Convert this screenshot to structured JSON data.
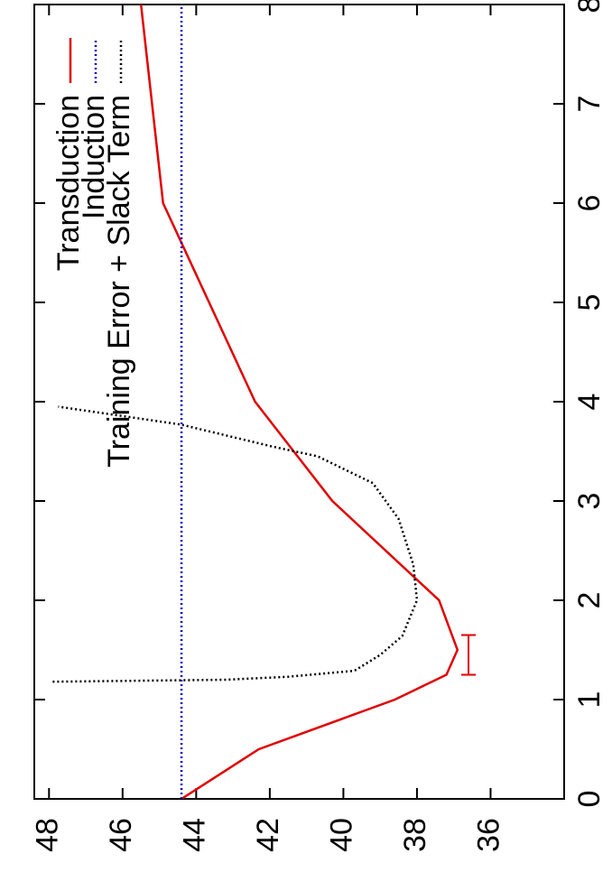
{
  "chart_data": {
    "type": "line",
    "rotated": true,
    "legend": "top right",
    "grid": false,
    "xlim": [
      0,
      8
    ],
    "xticks": [
      0,
      1,
      2,
      3,
      4,
      5,
      6,
      7,
      8
    ],
    "ylim": [
      34,
      48.4
    ],
    "yticks": [
      36,
      38,
      40,
      42,
      44,
      46,
      48
    ],
    "series": [
      {
        "name": "Transduction",
        "color": "#e00000",
        "style": "solid",
        "x": [
          0,
          0.5,
          1,
          1.25,
          1.5,
          2,
          3,
          4,
          6,
          8
        ],
        "values": [
          44.4,
          42.3,
          38.6,
          37.2,
          36.9,
          37.4,
          40.3,
          42.4,
          44.9,
          45.5
        ]
      },
      {
        "name": "Induction",
        "color": "#0000cc",
        "style": "dotted",
        "x": [
          0,
          8
        ],
        "values": [
          44.4,
          44.4
        ]
      },
      {
        "name": "Training Error + Slack Term",
        "color": "#000000",
        "style": "dotted",
        "x": [
          1.18,
          1.2,
          1.23,
          1.29,
          1.45,
          1.64,
          2.0,
          2.36,
          2.82,
          3.18,
          3.45,
          3.55,
          3.77,
          3.95
        ],
        "values": [
          47.9,
          43.2,
          41.5,
          39.7,
          39.0,
          38.4,
          38.0,
          38.1,
          38.5,
          39.2,
          40.7,
          41.95,
          44.42,
          47.75
        ]
      }
    ],
    "interval": {
      "color": "#e00000",
      "y": 36.6,
      "x": [
        1.25,
        1.65
      ]
    }
  }
}
